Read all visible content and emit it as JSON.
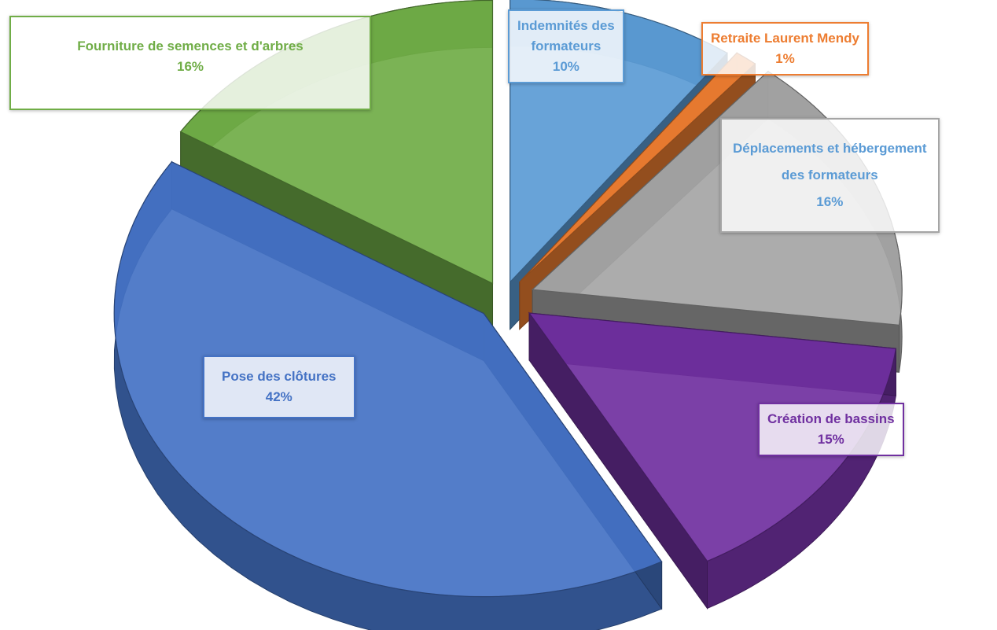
{
  "chart_data": {
    "type": "pie",
    "title": "",
    "slices": [
      {
        "label": "Indemnités des formateurs",
        "lines": [
          "Indemnités des",
          "formateurs"
        ],
        "pct_label": "10%",
        "value": 10,
        "color": "#5b9bd5",
        "text_color": "#5b9bd5"
      },
      {
        "label": "Retraite Laurent Mendy",
        "lines": [
          "Retraite Laurent Mendy"
        ],
        "pct_label": "1%",
        "value": 1,
        "color": "#ed7d31",
        "text_color": "#ed7d31"
      },
      {
        "label": "Déplacements et hébergement des formateurs",
        "lines": [
          "Déplacements et hébergement",
          "des formateurs"
        ],
        "pct_label": "16%",
        "value": 16,
        "color": "#a5a5a5",
        "text_color": "#5b9bd5"
      },
      {
        "label": "Création de bassins",
        "lines": [
          "Création de bassins"
        ],
        "pct_label": "15%",
        "value": 15,
        "color": "#7030a0",
        "text_color": "#7030a0"
      },
      {
        "label": "Pose des clôtures",
        "lines": [
          "Pose des clôtures"
        ],
        "pct_label": "42%",
        "value": 42,
        "color": "#4472c4",
        "text_color": "#4472c4"
      },
      {
        "label": "Fourniture de semences et d'arbres",
        "lines": [
          "Fourniture de semences et d'arbres"
        ],
        "pct_label": "16%",
        "value": 16,
        "color": "#70ad47",
        "text_color": "#70ad47"
      }
    ],
    "start": "12 o'clock",
    "direction": "clockwise",
    "style": "3D exploded pie",
    "legend": "none"
  }
}
